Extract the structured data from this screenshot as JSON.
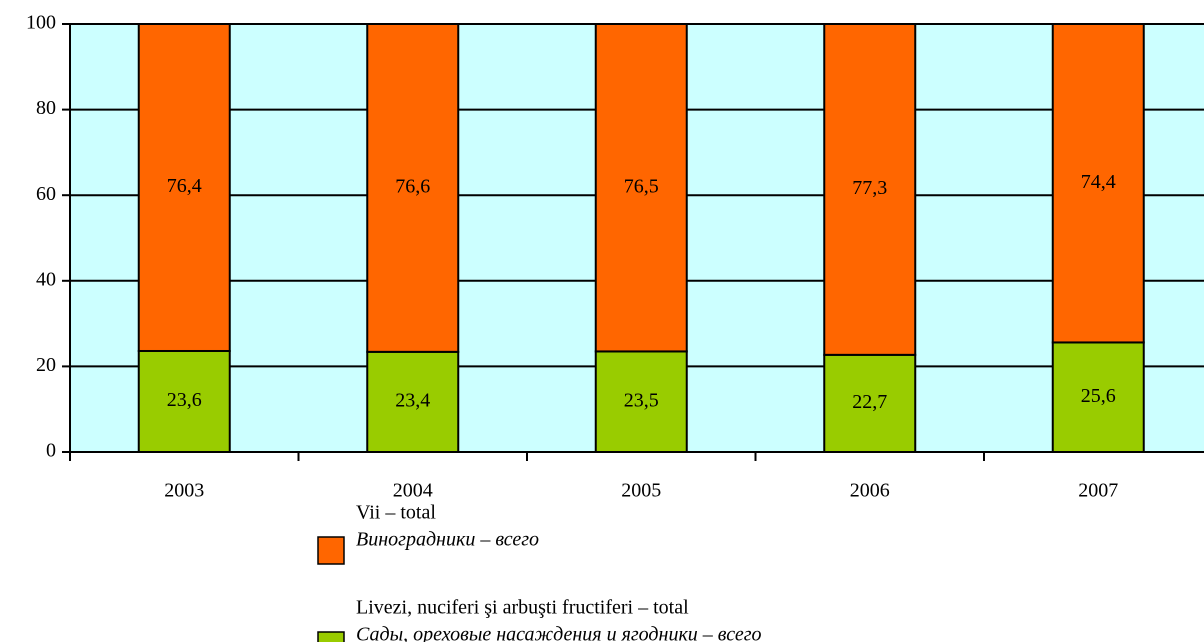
{
  "chart_data": {
    "type": "stacked_bar",
    "categories": [
      "2003",
      "2004",
      "2005",
      "2006",
      "2007"
    ],
    "series": [
      {
        "name": "Livezi, nuciferi şi arbuşti fructiferi – total",
        "name_ru": "Сады, ореховые насаждения и ягодники – всего",
        "color": "#99cc00",
        "values": [
          23.6,
          23.4,
          23.5,
          22.7,
          25.6
        ],
        "value_labels": [
          "23,6",
          "23,4",
          "23,5",
          "22,7",
          "25,6"
        ]
      },
      {
        "name": "Vii – total",
        "name_ru": "Виноградники – всего",
        "color": "#ff6600",
        "values": [
          76.4,
          76.6,
          76.5,
          77.3,
          74.4
        ],
        "value_labels": [
          "76,4",
          "76,6",
          "76,5",
          "77,3",
          "74,4"
        ]
      }
    ],
    "ylim": [
      0,
      100
    ],
    "yticks": [
      0,
      20,
      40,
      60,
      80,
      100
    ],
    "grid": true,
    "plot_background": "#ccffff"
  }
}
